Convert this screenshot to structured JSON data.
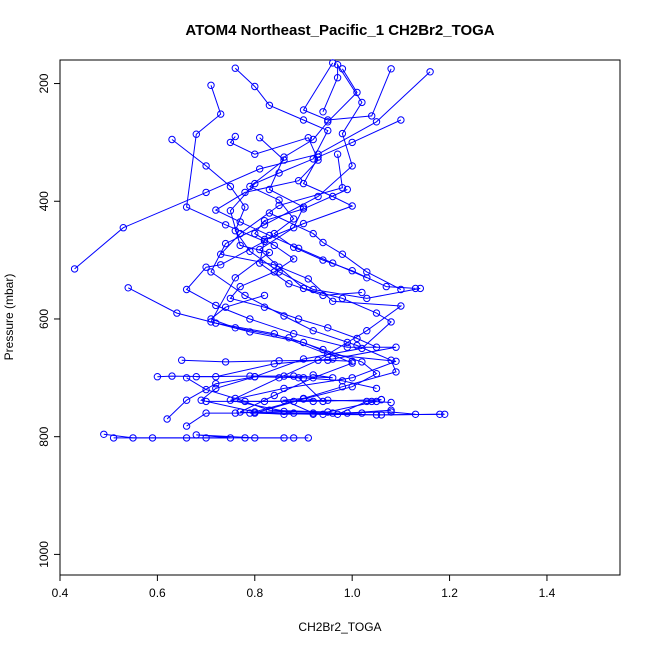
{
  "chart_data": {
    "type": "line",
    "title": "ATOM4 Northeast_Pacific_1 CH2Br2_TOGA",
    "xlabel": "CH2Br2_TOGA",
    "ylabel": "Pressure (mbar)",
    "xlim": [
      0.4,
      1.55
    ],
    "ylim": [
      1035,
      160
    ],
    "y_reversed": true,
    "x_ticks": [
      "0.4",
      "0.6",
      "0.8",
      "1.0",
      "1.2",
      "1.4"
    ],
    "y_ticks": [
      "200",
      "400",
      "600",
      "800",
      "1000"
    ],
    "grid": false,
    "color": "#0000ff",
    "profiles": [
      [
        [
          0.43,
          515
        ],
        [
          0.53,
          445
        ],
        [
          0.7,
          385
        ],
        [
          0.81,
          345
        ],
        [
          0.93,
          320
        ],
        [
          1.05,
          265
        ],
        [
          1.16,
          180
        ]
      ],
      [
        [
          0.54,
          547
        ],
        [
          0.64,
          590
        ],
        [
          0.72,
          607
        ],
        [
          0.84,
          625
        ],
        [
          0.95,
          660
        ],
        [
          1.09,
          672
        ],
        [
          1.0,
          700
        ],
        [
          0.86,
          718
        ],
        [
          0.75,
          738
        ],
        [
          0.88,
          760
        ],
        [
          1.05,
          763
        ],
        [
          1.19,
          762
        ]
      ],
      [
        [
          0.63,
          295
        ],
        [
          0.7,
          340
        ],
        [
          0.75,
          375
        ],
        [
          0.78,
          410
        ],
        [
          0.76,
          450
        ],
        [
          0.79,
          485
        ],
        [
          0.85,
          520
        ],
        [
          0.92,
          550
        ],
        [
          1.03,
          565
        ],
        [
          1.14,
          548
        ]
      ],
      [
        [
          0.71,
          203
        ],
        [
          0.73,
          252
        ],
        [
          0.68,
          286
        ],
        [
          0.66,
          410
        ],
        [
          0.74,
          440
        ],
        [
          0.82,
          468
        ],
        [
          0.73,
          508
        ],
        [
          0.7,
          512
        ],
        [
          0.66,
          550
        ],
        [
          0.72,
          577
        ],
        [
          0.79,
          600
        ],
        [
          0.88,
          625
        ],
        [
          0.99,
          648
        ],
        [
          1.09,
          648
        ],
        [
          0.96,
          668
        ],
        [
          0.84,
          676
        ],
        [
          0.72,
          698
        ],
        [
          0.63,
          697
        ],
        [
          0.6,
          698
        ]
      ],
      [
        [
          0.76,
          174
        ],
        [
          0.8,
          205
        ],
        [
          0.83,
          237
        ],
        [
          0.9,
          262
        ],
        [
          0.95,
          280
        ],
        [
          0.92,
          328
        ],
        [
          0.85,
          352
        ],
        [
          0.8,
          370
        ],
        [
          0.75,
          416
        ],
        [
          0.77,
          475
        ],
        [
          0.83,
          487
        ],
        [
          0.76,
          530
        ],
        [
          0.71,
          605
        ],
        [
          0.79,
          622
        ],
        [
          0.9,
          640
        ],
        [
          1.0,
          675
        ],
        [
          0.92,
          700
        ],
        [
          0.84,
          730
        ],
        [
          0.77,
          758
        ],
        [
          0.86,
          762
        ],
        [
          0.99,
          760
        ],
        [
          1.08,
          755
        ]
      ],
      [
        [
          0.81,
          292
        ],
        [
          0.86,
          330
        ],
        [
          0.79,
          375
        ],
        [
          0.85,
          398
        ],
        [
          0.88,
          430
        ],
        [
          0.84,
          455
        ],
        [
          0.88,
          478
        ],
        [
          0.94,
          500
        ],
        [
          1.0,
          518
        ],
        [
          1.07,
          545
        ],
        [
          1.13,
          548
        ]
      ],
      [
        [
          0.94,
          248
        ],
        [
          0.97,
          190
        ],
        [
          0.97,
          168
        ],
        [
          1.02,
          232
        ],
        [
          0.98,
          285
        ],
        [
          1.0,
          340
        ],
        [
          0.93,
          392
        ],
        [
          0.82,
          440
        ],
        [
          0.74,
          472
        ],
        [
          0.71,
          520
        ],
        [
          0.78,
          560
        ],
        [
          0.86,
          595
        ],
        [
          0.92,
          620
        ],
        [
          1.01,
          645
        ],
        [
          1.08,
          670
        ],
        [
          1.09,
          690
        ],
        [
          0.98,
          715
        ],
        [
          0.88,
          740
        ],
        [
          0.79,
          760
        ],
        [
          0.92,
          762
        ],
        [
          1.06,
          763
        ],
        [
          1.18,
          762
        ]
      ],
      [
        [
          1.08,
          175
        ],
        [
          1.04,
          255
        ],
        [
          0.95,
          262
        ],
        [
          0.9,
          245
        ],
        [
          0.96,
          165
        ]
      ],
      [
        [
          1.1,
          262
        ],
        [
          1.0,
          300
        ],
        [
          0.93,
          325
        ],
        [
          0.9,
          370
        ],
        [
          0.96,
          392
        ],
        [
          1.0,
          408
        ],
        [
          0.9,
          438
        ],
        [
          0.82,
          465
        ],
        [
          0.81,
          505
        ],
        [
          0.87,
          540
        ],
        [
          0.94,
          560
        ],
        [
          1.02,
          555
        ]
      ],
      [
        [
          0.97,
          320
        ],
        [
          0.98,
          377
        ],
        [
          0.85,
          407
        ],
        [
          0.77,
          455
        ],
        [
          0.73,
          490
        ],
        [
          0.84,
          508
        ],
        [
          0.91,
          532
        ],
        [
          0.96,
          570
        ],
        [
          1.1,
          578
        ],
        [
          1.03,
          620
        ],
        [
          0.99,
          640
        ],
        [
          0.93,
          670
        ],
        [
          0.85,
          700
        ],
        [
          0.76,
          735
        ],
        [
          0.83,
          755
        ],
        [
          0.95,
          758
        ],
        [
          1.05,
          740
        ]
      ],
      [
        [
          0.98,
          175
        ],
        [
          1.01,
          215
        ],
        [
          0.95,
          265
        ],
        [
          0.92,
          295
        ],
        [
          0.86,
          325
        ],
        [
          0.83,
          380
        ],
        [
          0.9,
          410
        ],
        [
          0.88,
          445
        ],
        [
          0.81,
          482
        ],
        [
          0.85,
          512
        ],
        [
          0.9,
          548
        ],
        [
          0.98,
          565
        ],
        [
          1.05,
          590
        ],
        [
          1.08,
          605
        ],
        [
          1.02,
          650
        ],
        [
          0.9,
          668
        ],
        [
          0.8,
          698
        ],
        [
          0.72,
          718
        ],
        [
          0.69,
          738
        ],
        [
          0.8,
          758
        ],
        [
          0.94,
          762
        ],
        [
          1.02,
          760
        ]
      ],
      [
        [
          0.83,
          420
        ],
        [
          0.92,
          455
        ],
        [
          0.94,
          470
        ],
        [
          0.98,
          490
        ],
        [
          1.03,
          520
        ],
        [
          1.1,
          550
        ]
      ],
      [
        [
          0.99,
          380
        ],
        [
          0.9,
          413
        ],
        [
          0.82,
          433
        ],
        [
          0.8,
          455
        ],
        [
          0.84,
          475
        ],
        [
          0.88,
          498
        ],
        [
          0.84,
          520
        ],
        [
          0.77,
          545
        ],
        [
          0.75,
          565
        ],
        [
          0.82,
          580
        ],
        [
          0.89,
          600
        ],
        [
          0.95,
          615
        ],
        [
          1.01,
          633
        ],
        [
          1.05,
          648
        ]
      ],
      [
        [
          0.76,
          290
        ],
        [
          0.75,
          300
        ],
        [
          0.8,
          320
        ],
        [
          0.91,
          292
        ],
        [
          0.93,
          330
        ],
        [
          0.89,
          365
        ],
        [
          0.78,
          385
        ],
        [
          0.72,
          415
        ],
        [
          0.77,
          435
        ],
        [
          0.83,
          458
        ],
        [
          0.89,
          480
        ],
        [
          0.96,
          505
        ],
        [
          1.03,
          530
        ]
      ],
      [
        [
          0.82,
          560
        ],
        [
          0.74,
          580
        ],
        [
          0.71,
          600
        ],
        [
          0.76,
          615
        ],
        [
          0.87,
          632
        ],
        [
          0.94,
          652
        ],
        [
          1.02,
          673
        ],
        [
          1.05,
          693
        ],
        [
          1.0,
          715
        ],
        [
          0.9,
          736
        ],
        [
          0.8,
          760
        ]
      ],
      [
        [
          0.66,
          700
        ],
        [
          0.7,
          720
        ],
        [
          0.78,
          740
        ],
        [
          0.92,
          740
        ],
        [
          1.06,
          737
        ]
      ],
      [
        [
          0.65,
          670
        ],
        [
          0.74,
          673
        ],
        [
          0.85,
          671
        ],
        [
          0.95,
          670
        ],
        [
          1.0,
          672
        ]
      ],
      [
        [
          0.62,
          770
        ],
        [
          0.66,
          738
        ],
        [
          0.72,
          710
        ],
        [
          0.8,
          698
        ],
        [
          0.9,
          700
        ],
        [
          0.98,
          705
        ],
        [
          1.05,
          718
        ]
      ],
      [
        [
          0.66,
          782
        ],
        [
          0.7,
          760
        ],
        [
          0.76,
          760
        ],
        [
          0.86,
          757
        ],
        [
          0.96,
          760
        ],
        [
          1.08,
          758
        ],
        [
          1.13,
          762
        ]
      ],
      [
        [
          0.49,
          796
        ],
        [
          0.55,
          802
        ],
        [
          0.66,
          802
        ],
        [
          0.78,
          802
        ],
        [
          0.88,
          802
        ],
        [
          0.91,
          802
        ]
      ],
      [
        [
          0.51,
          802
        ],
        [
          0.59,
          802
        ],
        [
          0.7,
          802
        ],
        [
          0.75,
          802
        ],
        [
          0.68,
          797
        ],
        [
          0.8,
          802
        ],
        [
          0.86,
          802
        ]
      ],
      [
        [
          0.7,
          740
        ],
        [
          0.82,
          740
        ],
        [
          0.95,
          738
        ],
        [
          1.04,
          740
        ],
        [
          1.08,
          742
        ]
      ],
      [
        [
          0.68,
          698
        ],
        [
          0.79,
          697
        ],
        [
          0.88,
          697
        ],
        [
          0.96,
          700
        ],
        [
          0.92,
          695
        ]
      ],
      [
        [
          0.86,
          697
        ],
        [
          0.89,
          700
        ],
        [
          0.94,
          740
        ],
        [
          0.9,
          735
        ],
        [
          0.86,
          738
        ],
        [
          0.92,
          760
        ],
        [
          0.97,
          762
        ],
        [
          1.03,
          740
        ],
        [
          1.06,
          737
        ]
      ]
    ]
  }
}
